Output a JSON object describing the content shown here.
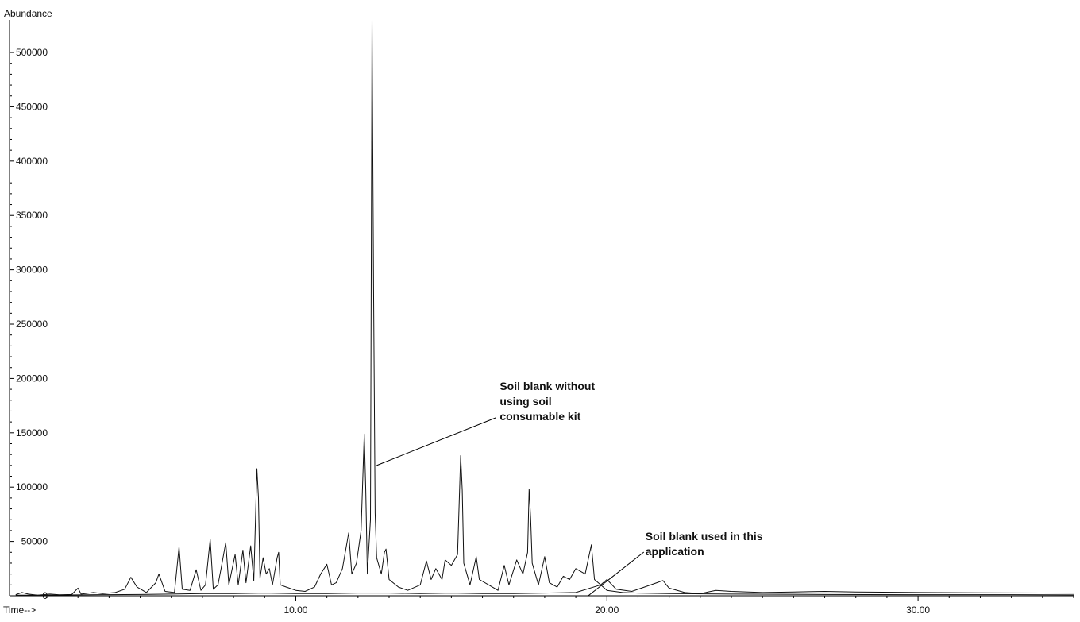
{
  "chart_data": {
    "type": "line",
    "ylabel": "Abundance",
    "xlabel": "Time-->",
    "xlim": [
      0.8,
      35
    ],
    "ylim": [
      0,
      530000
    ],
    "x_ticks": [
      10,
      20,
      30
    ],
    "x_tick_labels": [
      "10.00",
      "20.00",
      "30.00"
    ],
    "y_ticks": [
      0,
      50000,
      100000,
      150000,
      200000,
      250000,
      300000,
      350000,
      400000,
      450000,
      500000
    ],
    "y_tick_labels": [
      "0",
      "50000",
      "100000",
      "150000",
      "200000",
      "250000",
      "300000",
      "350000",
      "400000",
      "450000",
      "500000"
    ],
    "grid": false,
    "series": [
      {
        "name": "Soil blank without using soil consumable kit",
        "color": "#111111",
        "points": [
          [
            1.0,
            1000
          ],
          [
            1.2,
            3000
          ],
          [
            1.4,
            1500
          ],
          [
            1.7,
            500
          ],
          [
            2.1,
            1500
          ],
          [
            2.4,
            900
          ],
          [
            2.8,
            1200
          ],
          [
            3.0,
            7000
          ],
          [
            3.1,
            1500
          ],
          [
            3.5,
            3000
          ],
          [
            3.8,
            2000
          ],
          [
            4.2,
            3000
          ],
          [
            4.5,
            6000
          ],
          [
            4.7,
            17000
          ],
          [
            4.9,
            8000
          ],
          [
            5.2,
            3000
          ],
          [
            5.5,
            12000
          ],
          [
            5.6,
            20000
          ],
          [
            5.8,
            4000
          ],
          [
            6.1,
            3000
          ],
          [
            6.25,
            45000
          ],
          [
            6.35,
            6000
          ],
          [
            6.6,
            5000
          ],
          [
            6.8,
            24000
          ],
          [
            6.95,
            5000
          ],
          [
            7.1,
            10000
          ],
          [
            7.25,
            52000
          ],
          [
            7.35,
            6000
          ],
          [
            7.5,
            10000
          ],
          [
            7.6,
            25000
          ],
          [
            7.75,
            49000
          ],
          [
            7.85,
            10000
          ],
          [
            8.05,
            38000
          ],
          [
            8.15,
            10000
          ],
          [
            8.3,
            42000
          ],
          [
            8.4,
            12000
          ],
          [
            8.55,
            46000
          ],
          [
            8.65,
            14000
          ],
          [
            8.75,
            117000
          ],
          [
            8.8,
            90000
          ],
          [
            8.85,
            16000
          ],
          [
            8.95,
            35000
          ],
          [
            9.05,
            20000
          ],
          [
            9.15,
            25000
          ],
          [
            9.25,
            10000
          ],
          [
            9.4,
            35000
          ],
          [
            9.45,
            40000
          ],
          [
            9.5,
            10000
          ],
          [
            9.7,
            8000
          ],
          [
            10.0,
            5000
          ],
          [
            10.3,
            4000
          ],
          [
            10.6,
            8000
          ],
          [
            10.8,
            20000
          ],
          [
            11.0,
            29000
          ],
          [
            11.15,
            10000
          ],
          [
            11.3,
            12000
          ],
          [
            11.5,
            25000
          ],
          [
            11.7,
            58000
          ],
          [
            11.8,
            20000
          ],
          [
            11.95,
            30000
          ],
          [
            12.1,
            60000
          ],
          [
            12.2,
            149000
          ],
          [
            12.25,
            97000
          ],
          [
            12.3,
            20000
          ],
          [
            12.4,
            70000
          ],
          [
            12.45,
            530000
          ],
          [
            12.5,
            285000
          ],
          [
            12.55,
            76000
          ],
          [
            12.6,
            35000
          ],
          [
            12.75,
            20000
          ],
          [
            12.85,
            40000
          ],
          [
            12.9,
            43000
          ],
          [
            13.0,
            15000
          ],
          [
            13.3,
            8000
          ],
          [
            13.6,
            5000
          ],
          [
            14.0,
            10000
          ],
          [
            14.2,
            32000
          ],
          [
            14.35,
            15000
          ],
          [
            14.5,
            25000
          ],
          [
            14.7,
            15000
          ],
          [
            14.8,
            33000
          ],
          [
            15.0,
            28000
          ],
          [
            15.2,
            38000
          ],
          [
            15.3,
            129000
          ],
          [
            15.35,
            97000
          ],
          [
            15.4,
            30000
          ],
          [
            15.6,
            10000
          ],
          [
            15.8,
            36000
          ],
          [
            15.9,
            15000
          ],
          [
            16.2,
            10000
          ],
          [
            16.5,
            5000
          ],
          [
            16.7,
            28000
          ],
          [
            16.85,
            10000
          ],
          [
            17.1,
            33000
          ],
          [
            17.3,
            20000
          ],
          [
            17.45,
            40000
          ],
          [
            17.5,
            98000
          ],
          [
            17.55,
            70000
          ],
          [
            17.6,
            30000
          ],
          [
            17.8,
            10000
          ],
          [
            18.0,
            36000
          ],
          [
            18.15,
            12000
          ],
          [
            18.4,
            8000
          ],
          [
            18.6,
            18000
          ],
          [
            18.8,
            15000
          ],
          [
            19.0,
            25000
          ],
          [
            19.3,
            20000
          ],
          [
            19.5,
            47000
          ],
          [
            19.6,
            15000
          ],
          [
            19.8,
            10000
          ],
          [
            20.0,
            5000
          ],
          [
            20.5,
            3000
          ],
          [
            21.0,
            2500
          ],
          [
            22.0,
            2000
          ],
          [
            24.0,
            1500
          ],
          [
            27.0,
            1200
          ],
          [
            30.0,
            1000
          ],
          [
            33.0,
            1000
          ],
          [
            35.0,
            800
          ]
        ]
      },
      {
        "name": "Soil blank used in this application",
        "color": "#111111",
        "points": [
          [
            1.0,
            500
          ],
          [
            2.0,
            600
          ],
          [
            3.0,
            800
          ],
          [
            4.0,
            1000
          ],
          [
            5.0,
            1200
          ],
          [
            6.0,
            1500
          ],
          [
            7.0,
            2000
          ],
          [
            8.0,
            2000
          ],
          [
            9.0,
            2500
          ],
          [
            10.0,
            2000
          ],
          [
            11.0,
            2000
          ],
          [
            12.0,
            2500
          ],
          [
            13.0,
            2500
          ],
          [
            14.0,
            2000
          ],
          [
            15.0,
            2500
          ],
          [
            16.0,
            2000
          ],
          [
            17.0,
            2000
          ],
          [
            18.0,
            2500
          ],
          [
            19.0,
            3000
          ],
          [
            19.8,
            10000
          ],
          [
            20.0,
            15000
          ],
          [
            20.3,
            6000
          ],
          [
            20.8,
            4000
          ],
          [
            21.2,
            8000
          ],
          [
            21.6,
            12000
          ],
          [
            21.8,
            14000
          ],
          [
            22.0,
            7000
          ],
          [
            22.5,
            3000
          ],
          [
            23.0,
            2000
          ],
          [
            23.5,
            5000
          ],
          [
            24.0,
            4000
          ],
          [
            25.0,
            3000
          ],
          [
            26.0,
            3500
          ],
          [
            27.0,
            4000
          ],
          [
            28.0,
            3500
          ],
          [
            30.0,
            3000
          ],
          [
            32.0,
            2800
          ],
          [
            35.0,
            2500
          ]
        ]
      }
    ],
    "annotations": [
      {
        "lines": [
          "Soil blank without",
          "using soil",
          "consumable kit"
        ],
        "target_x": 12.6,
        "target_y": 120000
      },
      {
        "lines": [
          "Soil blank used in this",
          "application"
        ],
        "target_x": 19.4,
        "target_y": 0
      }
    ]
  }
}
